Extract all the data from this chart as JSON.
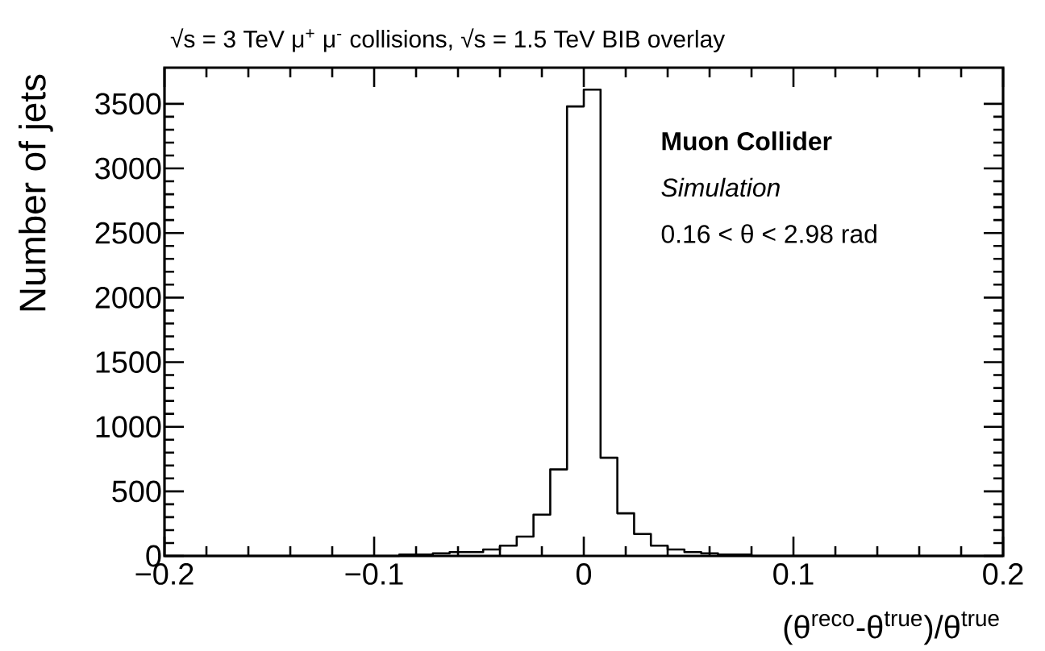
{
  "chart_data": {
    "type": "histogram",
    "title": "√s = 3 TeV μ$^{+}$ μ$^{-}$ collisions, √s = 1.5 TeV BIB overlay",
    "xlabel": "(θ$^{reco}$-θ$^{true}$)/θ$^{true}$",
    "ylabel": "Number of jets",
    "annotations": [
      "Muon Collider",
      "Simulation",
      "0.16 < θ < 2.98 rad"
    ],
    "bins": [
      -0.2,
      -0.192,
      -0.184,
      -0.176,
      -0.168,
      -0.16,
      -0.152,
      -0.144,
      -0.136,
      -0.128,
      -0.12,
      -0.112,
      -0.104,
      -0.096,
      -0.088,
      -0.08,
      -0.072,
      -0.064,
      -0.056,
      -0.048,
      -0.04,
      -0.032,
      -0.024,
      -0.016,
      -0.008,
      0,
      0.008,
      0.016,
      0.024,
      0.032,
      0.04,
      0.048,
      0.056,
      0.064,
      0.072,
      0.08,
      0.088,
      0.096,
      0.104,
      0.112,
      0.12,
      0.128,
      0.136,
      0.144,
      0.152,
      0.16,
      0.168,
      0.176,
      0.184,
      0.192,
      0.2
    ],
    "values": [
      0,
      0,
      0,
      0,
      0,
      0,
      0,
      0,
      0,
      0,
      0,
      0,
      0,
      0,
      10,
      10,
      20,
      30,
      30,
      50,
      80,
      150,
      320,
      670,
      3480,
      3610,
      760,
      330,
      170,
      80,
      50,
      30,
      20,
      10,
      10,
      0,
      0,
      0,
      0,
      0,
      0,
      0,
      0,
      0,
      0,
      0,
      0,
      0,
      0,
      0
    ],
    "color": "#000000",
    "xlim": [
      -0.2,
      0.2
    ],
    "ylim": [
      0,
      3780
    ],
    "xticks": [
      {
        "value": -0.2,
        "label": "−0.2"
      },
      {
        "value": -0.1,
        "label": "−0.1"
      },
      0,
      0.1,
      0.2
    ],
    "yticks": [
      0,
      500,
      1000,
      1500,
      2000,
      2500,
      3000,
      3500
    ]
  }
}
